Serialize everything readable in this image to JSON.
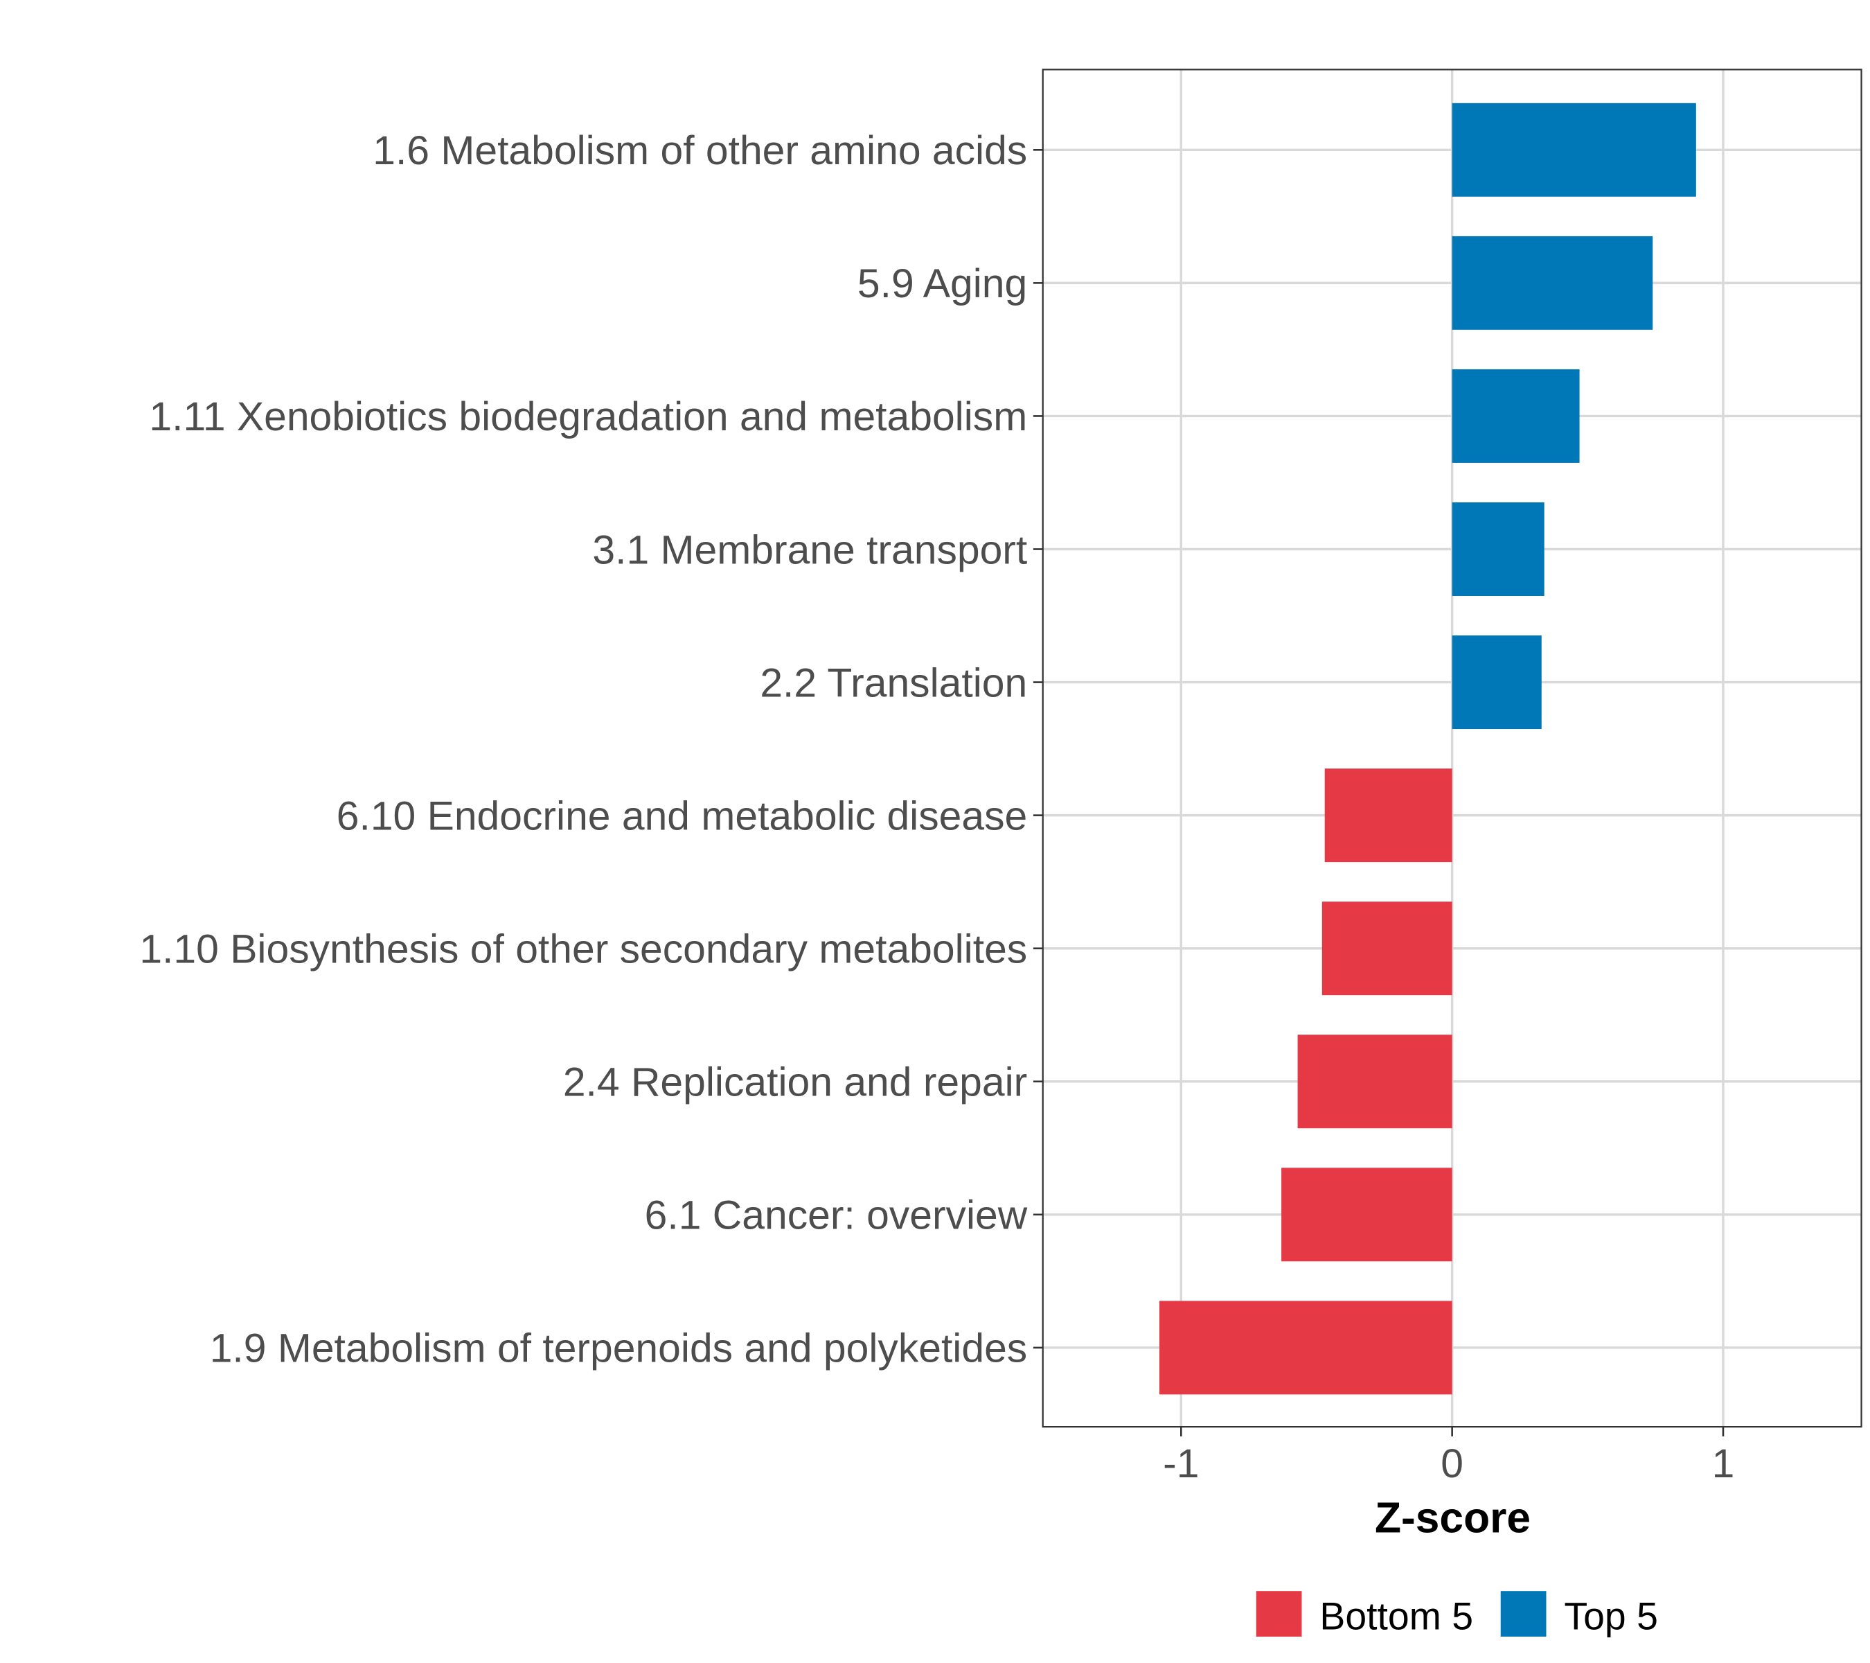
{
  "chart_data": {
    "type": "bar",
    "orientation": "horizontal",
    "title": "",
    "xlabel": "Z-score",
    "ylabel": "",
    "xlim": [
      -1.51,
      1.51
    ],
    "xticks": [
      "-1",
      "0",
      "1"
    ],
    "xtick_values": [
      -1,
      0,
      1
    ],
    "grid": true,
    "legend_position": "bottom",
    "categories": [
      "1.6 Metabolism of other amino acids",
      "5.9 Aging",
      "1.11 Xenobiotics biodegradation and metabolism",
      "3.1 Membrane transport",
      "2.2 Translation",
      "6.10 Endocrine and metabolic disease",
      "1.10 Biosynthesis of other secondary metabolites",
      "2.4 Replication and repair",
      "6.1 Cancer: overview",
      "1.9 Metabolism of terpenoids and polyketides"
    ],
    "values": [
      0.9,
      0.74,
      0.47,
      0.34,
      0.33,
      -0.47,
      -0.48,
      -0.57,
      -0.63,
      -1.08
    ],
    "groups": [
      "Top 5",
      "Top 5",
      "Top 5",
      "Top 5",
      "Top 5",
      "Bottom 5",
      "Bottom 5",
      "Bottom 5",
      "Bottom 5",
      "Bottom 5"
    ],
    "legend": [
      {
        "label": "Bottom 5",
        "color": "#E63946"
      },
      {
        "label": "Top 5",
        "color": "#0077B6"
      }
    ]
  }
}
